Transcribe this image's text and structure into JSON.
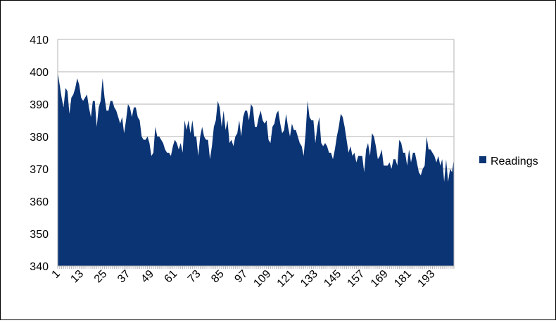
{
  "chart_data": {
    "type": "area",
    "title": "",
    "xlabel": "",
    "ylabel": "",
    "ylim": [
      340,
      410
    ],
    "yticks": [
      340,
      350,
      360,
      370,
      380,
      390,
      400,
      410
    ],
    "x_label_start": 1,
    "x_label_step": 12,
    "grid": true,
    "legend_position": "right",
    "series": [
      {
        "name": "Readings",
        "color": "#0b3475",
        "values": [
          400,
          396,
          392,
          389,
          395,
          394,
          387,
          392,
          393,
          395,
          398,
          396,
          392,
          391,
          392,
          393,
          389,
          386,
          391,
          391,
          383,
          389,
          391,
          398,
          392,
          388,
          388,
          391,
          391,
          389,
          388,
          386,
          384,
          386,
          381,
          385,
          390,
          389,
          386,
          389,
          389,
          386,
          385,
          380,
          379,
          379,
          380,
          378,
          374,
          375,
          383,
          380,
          380,
          379,
          378,
          376,
          375,
          375,
          374,
          377,
          379,
          378,
          376,
          378,
          375,
          385,
          382,
          385,
          381,
          385,
          380,
          380,
          374,
          380,
          383,
          380,
          379,
          379,
          373,
          377,
          383,
          385,
          391,
          389,
          383,
          388,
          382,
          385,
          378,
          379,
          377,
          380,
          381,
          385,
          380,
          386,
          388,
          388,
          385,
          390,
          389,
          383,
          383,
          386,
          388,
          385,
          384,
          385,
          379,
          378,
          383,
          384,
          387,
          388,
          384,
          381,
          382,
          387,
          383,
          380,
          384,
          382,
          382,
          380,
          378,
          377,
          374,
          381,
          391,
          386,
          385,
          385,
          378,
          383,
          386,
          378,
          377,
          378,
          377,
          375,
          375,
          373,
          376,
          380,
          383,
          387,
          386,
          383,
          379,
          375,
          377,
          374,
          375,
          372,
          374,
          374,
          374,
          369,
          376,
          378,
          374,
          381,
          380,
          377,
          373,
          374,
          376,
          371,
          371,
          371,
          372,
          370,
          373,
          373,
          371,
          379,
          378,
          375,
          375,
          371,
          376,
          372,
          375,
          375,
          372,
          369,
          368,
          370,
          371,
          380,
          376,
          376,
          375,
          374,
          372,
          374,
          371,
          373,
          366,
          373,
          366,
          370,
          369,
          373
        ]
      }
    ]
  }
}
